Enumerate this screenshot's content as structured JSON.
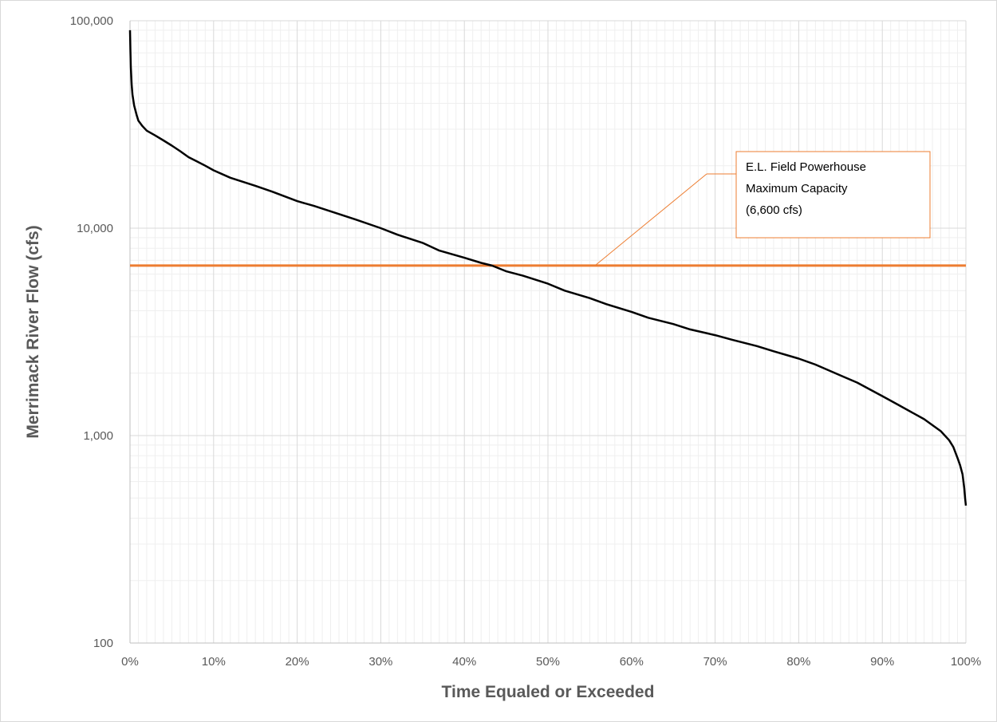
{
  "chart_data": {
    "type": "line",
    "title": "",
    "xlabel": "Time Equaled or Exceeded",
    "ylabel": "Merrimack River Flow (cfs)",
    "x_unit": "percent",
    "xlim": [
      0,
      100
    ],
    "ylim": [
      100,
      100000
    ],
    "y_scale": "log",
    "grid": true,
    "x_ticks": [
      "0%",
      "10%",
      "20%",
      "30%",
      "40%",
      "50%",
      "60%",
      "70%",
      "80%",
      "90%",
      "100%"
    ],
    "x_tick_values": [
      0,
      10,
      20,
      30,
      40,
      50,
      60,
      70,
      80,
      90,
      100
    ],
    "y_ticks": [
      "100",
      "1,000",
      "10,000",
      "100,000"
    ],
    "y_tick_values": [
      100,
      1000,
      10000,
      100000
    ],
    "colors": {
      "series": "#000000",
      "reference": "#ed7d31",
      "grid": "#d9d9d9"
    },
    "series": [
      {
        "x": [
          0,
          0.05,
          0.1,
          0.2,
          0.3,
          0.5,
          0.8,
          1,
          1.5,
          2,
          3,
          4,
          5,
          6,
          7,
          8,
          9,
          10,
          12,
          15,
          17,
          20,
          22,
          25,
          27,
          30,
          32,
          35,
          37,
          40,
          42,
          43.3,
          45,
          47,
          50,
          52,
          55,
          57,
          60,
          62,
          65,
          67,
          70,
          72,
          75,
          77,
          80,
          82,
          85,
          87,
          90,
          92,
          95,
          97,
          98,
          98.5,
          99,
          99.3,
          99.6,
          99.8,
          99.9,
          100
        ],
        "y": [
          90000,
          72000,
          60000,
          49000,
          44000,
          39000,
          35000,
          33000,
          31000,
          29500,
          28000,
          26500,
          25000,
          23500,
          22000,
          21000,
          20000,
          19000,
          17500,
          16000,
          15000,
          13500,
          12800,
          11700,
          11000,
          10000,
          9300,
          8500,
          7800,
          7200,
          6800,
          6600,
          6200,
          5900,
          5400,
          5000,
          4600,
          4300,
          3950,
          3700,
          3450,
          3250,
          3050,
          2900,
          2700,
          2550,
          2350,
          2200,
          1950,
          1800,
          1550,
          1400,
          1200,
          1050,
          950,
          880,
          780,
          720,
          650,
          560,
          500,
          460
        ]
      }
    ],
    "reference_line": {
      "value": 6600
    },
    "annotation": {
      "lines": [
        "E.L. Field Powerhouse",
        "Maximum Capacity",
        "(6,600 cfs)"
      ]
    }
  }
}
